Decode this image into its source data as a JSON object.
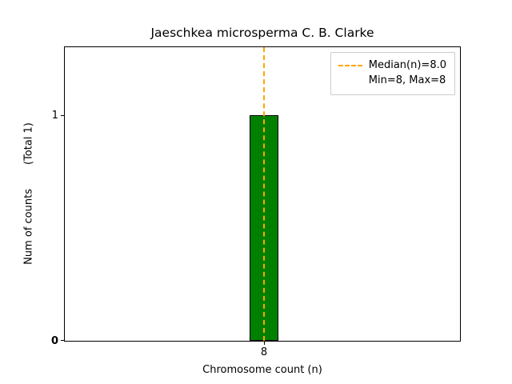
{
  "chart_data": {
    "type": "bar",
    "title": "Jaeschkea microsperma C. B. Clarke",
    "xlabel": "Chromosome count (n)",
    "ylabel": "Num of counts",
    "ylabel_secondary": "(Total 1)",
    "categories": [
      8
    ],
    "values": [
      1
    ],
    "xticks": [
      "8"
    ],
    "yticks": [
      "0",
      "1"
    ],
    "ylim": [
      0,
      1.3
    ],
    "grid": false,
    "legend_position": "upper right",
    "bar_color": "#008000",
    "bar_edge_color": "#000000",
    "median_line_color": "#ffa500",
    "median": 8.0,
    "min": 8,
    "max": 8,
    "legend": {
      "median_label": "Median(n)=8.0",
      "minmax_label": "Min=8, Max=8"
    }
  }
}
